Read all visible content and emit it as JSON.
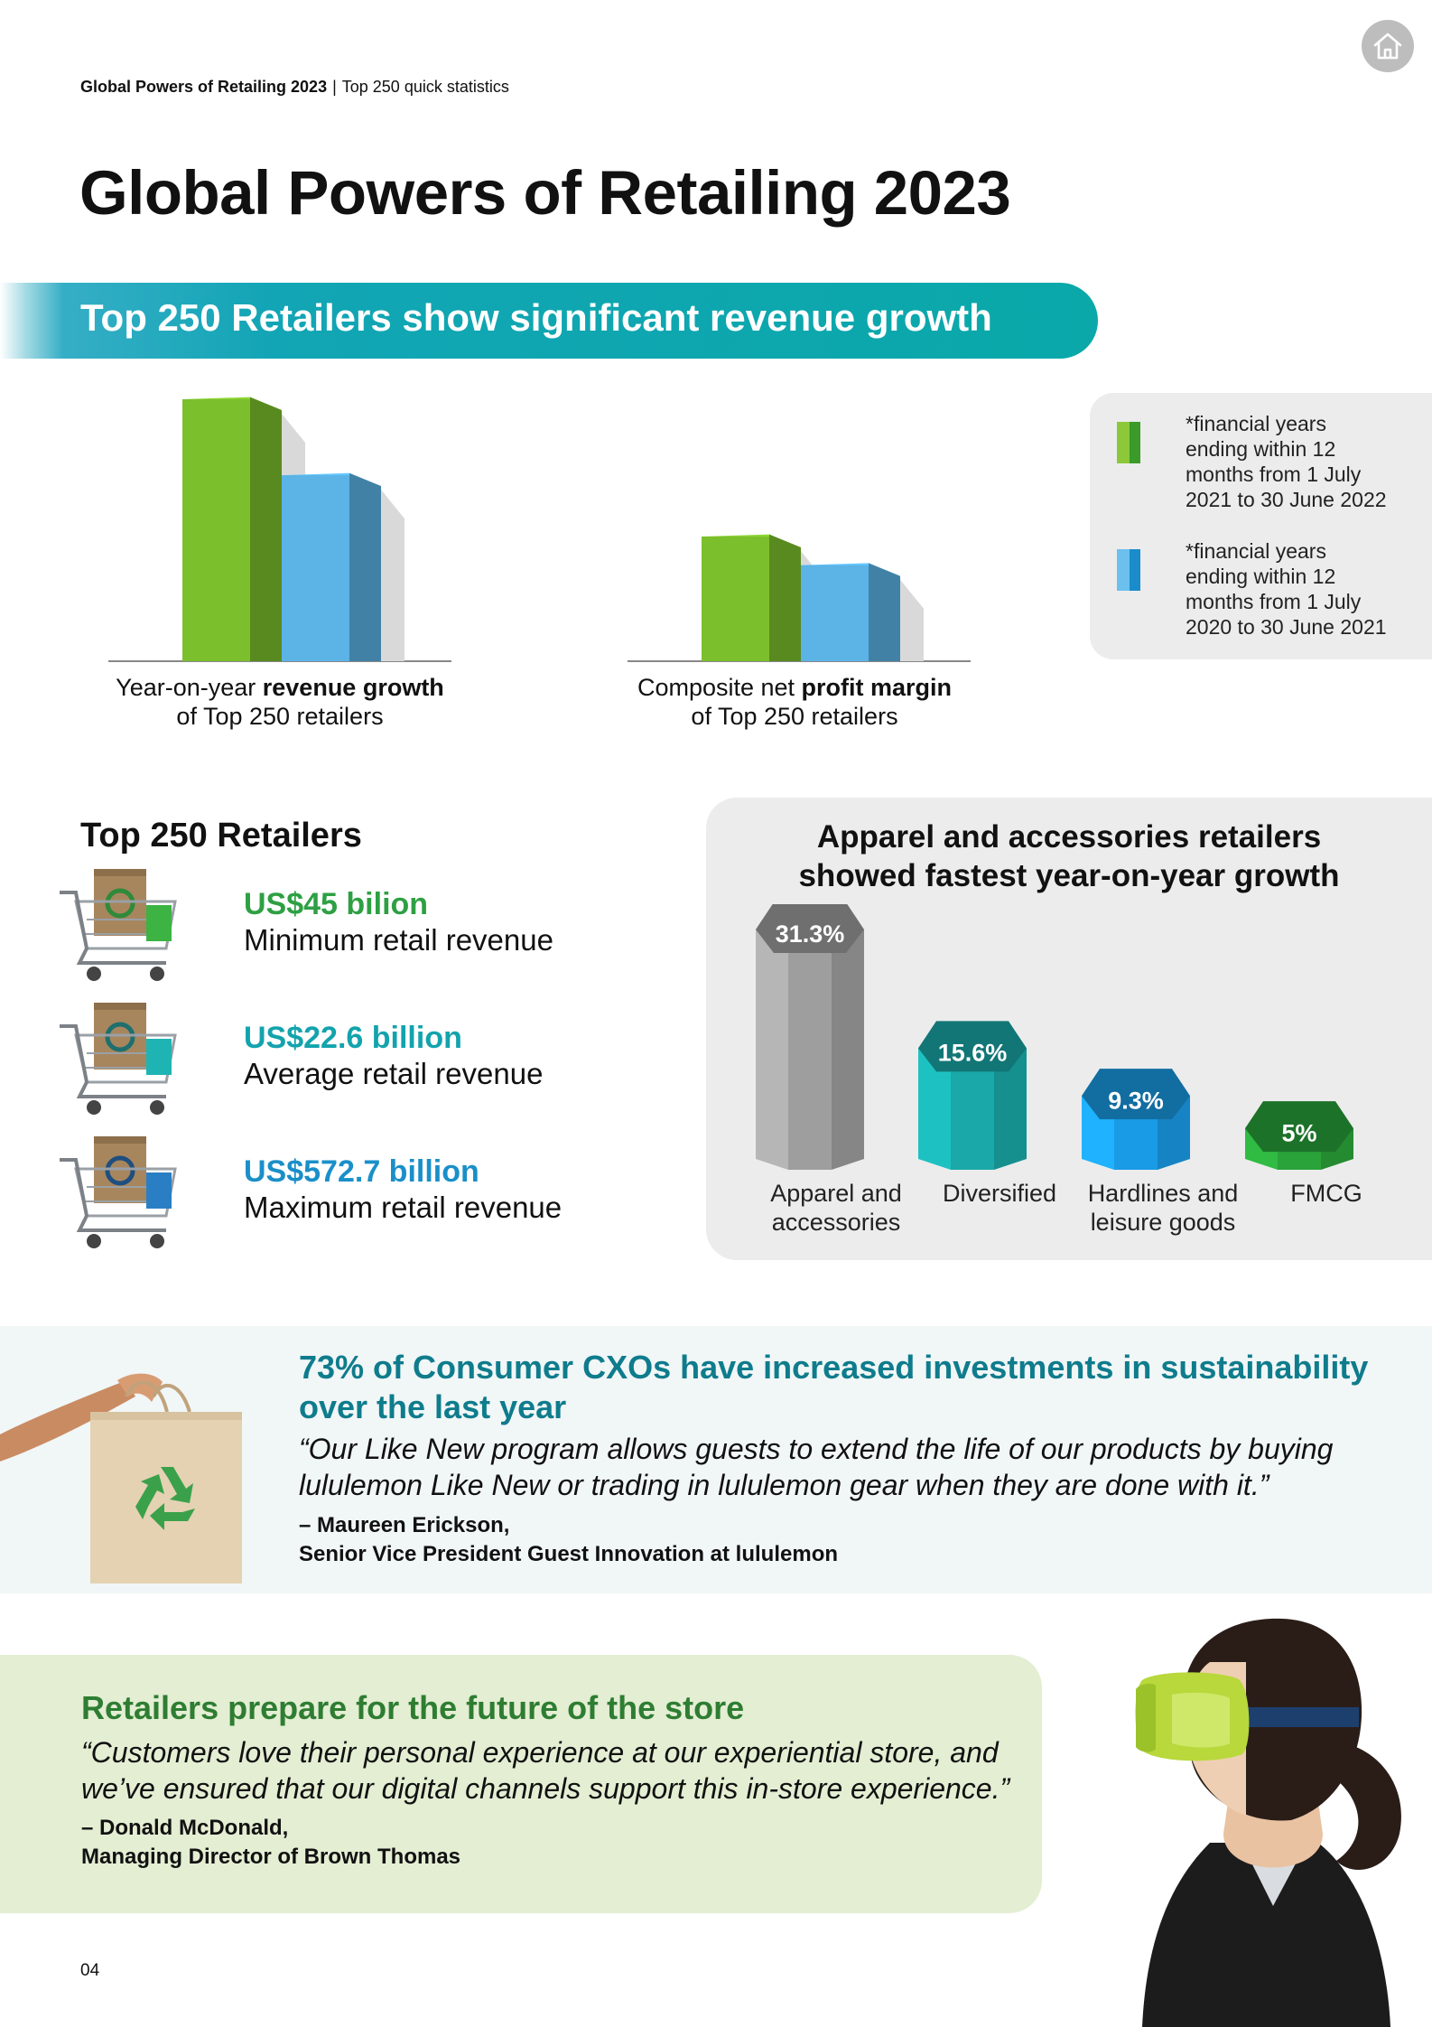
{
  "header": {
    "breadcrumb_title": "Global Powers of Retailing 2023",
    "breadcrumb_separator": "|",
    "breadcrumb_section": "Top 250 quick statistics",
    "home_icon": "home-icon"
  },
  "page_title": "Global Powers of Retailing 2023",
  "banner": {
    "text": "Top 250 Retailers show significant revenue growth"
  },
  "charts": {
    "revenue_growth": {
      "caption_pre": "Year-on-year ",
      "caption_bold": "revenue growth",
      "caption_line2": "of Top 250 retailers"
    },
    "profit_margin": {
      "caption_pre": "Composite net ",
      "caption_bold": "profit margin",
      "caption_line2": "of Top 250 retailers"
    }
  },
  "chart_data": [
    {
      "type": "bar",
      "categories": [
        "FY2022",
        "FY2021"
      ],
      "values": [
        100,
        71
      ],
      "ylim": [
        0,
        100
      ],
      "grid": false,
      "colors": [
        "#7cbf2d",
        "#5bb3e6"
      ]
    },
    {
      "type": "bar",
      "categories": [
        "FY2022",
        "FY2021"
      ],
      "values": [
        100,
        77
      ],
      "ylim": [
        0,
        100
      ],
      "grid": false,
      "colors": [
        "#7cbf2d",
        "#5bb3e6"
      ]
    },
    {
      "type": "bar",
      "title": "Apparel and accessories retailers showed fastest year-on-year growth",
      "categories": [
        "Apparel and accessories",
        "Diversified",
        "Hardlines and leisure goods",
        "FMCG"
      ],
      "values": [
        31.3,
        15.6,
        9.3,
        5
      ],
      "labels": [
        "31.3%",
        "15.6%",
        "9.3%",
        "5%"
      ],
      "ylim": [
        0,
        31.3
      ],
      "grid": false,
      "colors": [
        "#9e9e9e",
        "#1aa8a8",
        "#1a9be6",
        "#2aa33a"
      ]
    }
  ],
  "legend": [
    {
      "color": "#7cbf2d",
      "lines": [
        "*financial years",
        "ending within 12",
        "months from 1 July",
        "2021 to 30 June 2022"
      ]
    },
    {
      "color": "#5bb3e6",
      "lines": [
        "*financial years",
        "ending within 12",
        "months from 1 July",
        "2020 to 30 June 2021"
      ]
    }
  ],
  "top250": {
    "heading": "Top 250 Retailers",
    "stats": [
      {
        "value": "US$45 bilion",
        "label": "Minimum retail revenue",
        "color": "#2ea043",
        "icon": "shopping-cart-icon"
      },
      {
        "value": "US$22.6 billion",
        "label": "Average retail revenue",
        "color": "#13a3ad",
        "icon": "shopping-cart-icon"
      },
      {
        "value": "US$572.7 billion",
        "label": "Maximum retail revenue",
        "color": "#1a8fc9",
        "icon": "shopping-cart-icon"
      }
    ]
  },
  "apparel": {
    "title_line1": "Apparel and accessories retailers",
    "title_line2": "showed fastest year-on-year growth",
    "categories": [
      {
        "line1": "Apparel and",
        "line2": "accessories"
      },
      {
        "line1": "Diversified",
        "line2": ""
      },
      {
        "line1": "Hardlines and",
        "line2": "leisure goods"
      },
      {
        "line1": "FMCG",
        "line2": ""
      }
    ]
  },
  "sustainability": {
    "heading_line1": "73% of Consumer CXOs have increased investments in sustainability",
    "heading_line2": "over the last year",
    "quote_line1": "“Our Like New program allows guests to extend the life of our products by buying",
    "quote_line2": "lululemon Like New or trading in lululemon gear when they are done with it.”",
    "attribution_line1": "– Maureen Erickson,",
    "attribution_line2": "Senior Vice President Guest Innovation at lululemon",
    "image_icon": "recycle-bag-icon"
  },
  "store": {
    "heading": "Retailers prepare for the future of the store",
    "quote_line1": "“Customers love their personal experience at our experiential store, and",
    "quote_line2": "we’ve ensured that our digital channels support this in-store experience.”",
    "attribution_line1": "– Donald McDonald,",
    "attribution_line2": "Managing Director of Brown Thomas",
    "image_icon": "vr-headset-person-icon"
  },
  "footer": {
    "page_number": "04"
  }
}
